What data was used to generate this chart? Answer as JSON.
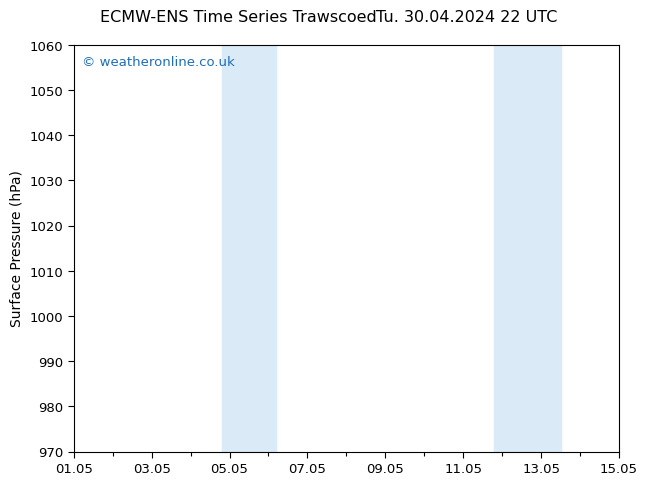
{
  "title": "ECMW-ENS Time Series Trawscoed      Tu. 30.04.2024 22 UTC",
  "title_left": "ECMW-ENS Time Series Trawscoed",
  "title_right": "Tu. 30.04.2024 22 UTC",
  "ylabel": "Surface Pressure (hPa)",
  "ylim": [
    970,
    1060
  ],
  "yticks": [
    970,
    980,
    990,
    1000,
    1010,
    1020,
    1030,
    1040,
    1050,
    1060
  ],
  "xlim_start": 0,
  "xlim_end": 14,
  "xtick_positions": [
    0,
    2,
    4,
    6,
    8,
    10,
    12,
    14
  ],
  "xtick_labels": [
    "01.05",
    "03.05",
    "05.05",
    "07.05",
    "09.05",
    "11.05",
    "13.05",
    "15.05"
  ],
  "shaded_bands": [
    {
      "x_start": 3.8,
      "x_end": 5.2
    },
    {
      "x_start": 10.8,
      "x_end": 12.5
    }
  ],
  "shade_color": "#daeaf7",
  "background_color": "#ffffff",
  "watermark_text": "© weatheronline.co.uk",
  "watermark_color": "#1e6eb5",
  "title_fontsize": 11.5,
  "axis_label_fontsize": 10,
  "tick_fontsize": 9.5,
  "watermark_fontsize": 9.5
}
